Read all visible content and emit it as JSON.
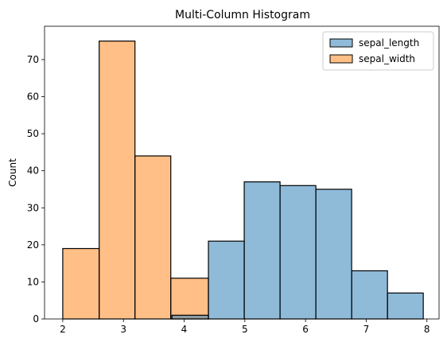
{
  "chart_data": {
    "type": "bar",
    "title": "Multi-Column Histogram",
    "xlabel": "",
    "ylabel": "Count",
    "xlim": [
      1.7,
      8.2
    ],
    "ylim": [
      0,
      79
    ],
    "xticks": [
      2,
      3,
      4,
      5,
      6,
      7,
      8
    ],
    "yticks": [
      0,
      10,
      20,
      30,
      40,
      50,
      60,
      70
    ],
    "grid": false,
    "legend_position": "top-right",
    "series": [
      {
        "name": "sepal_length",
        "color": "#1f77b4",
        "bins": [
          {
            "x0": 3.8,
            "x1": 4.4,
            "value": 1
          },
          {
            "x0": 4.4,
            "x1": 4.99,
            "value": 21
          },
          {
            "x0": 4.99,
            "x1": 5.58,
            "value": 37
          },
          {
            "x0": 5.58,
            "x1": 6.17,
            "value": 36
          },
          {
            "x0": 6.17,
            "x1": 6.76,
            "value": 35
          },
          {
            "x0": 6.76,
            "x1": 7.35,
            "value": 13
          },
          {
            "x0": 7.35,
            "x1": 7.94,
            "value": 7
          }
        ]
      },
      {
        "name": "sepal_width",
        "color": "#ff7f0e",
        "bins": [
          {
            "x0": 2.0,
            "x1": 2.6,
            "value": 19
          },
          {
            "x0": 2.6,
            "x1": 3.19,
            "value": 75
          },
          {
            "x0": 3.19,
            "x1": 3.78,
            "value": 44
          },
          {
            "x0": 3.78,
            "x1": 4.4,
            "value": 11
          }
        ]
      }
    ]
  }
}
